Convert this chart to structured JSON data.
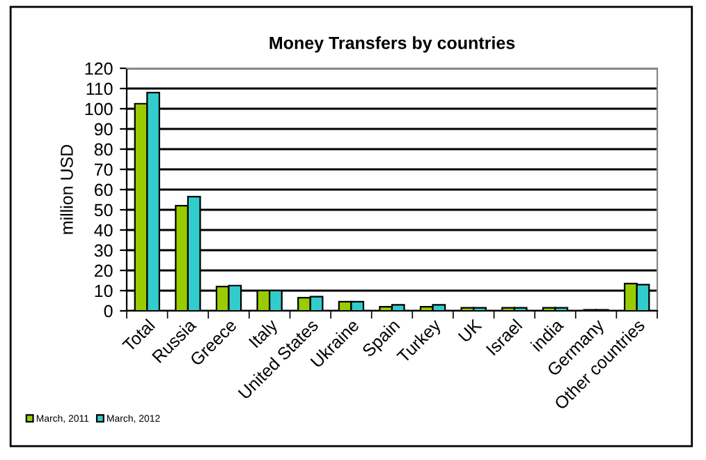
{
  "chart_data": {
    "type": "bar",
    "title": "Money Transfers by countries",
    "ylabel": "million USD",
    "categories": [
      "Total",
      "Russia",
      "Greece",
      "Italy",
      "United States",
      "Ukraine",
      "Spain",
      "Turkey",
      "UK",
      "Israel",
      "india",
      "Germany",
      "Other countries"
    ],
    "series": [
      {
        "name": "March, 2011",
        "color": "#99cc00",
        "values": [
          102.5,
          52,
          12,
          10,
          6.5,
          4.5,
          2,
          2,
          1.5,
          1.5,
          1.5,
          0.5,
          13.5
        ]
      },
      {
        "name": "March, 2012",
        "color": "#33cccc",
        "values": [
          108,
          56.5,
          12.5,
          10,
          7,
          4.5,
          3,
          3,
          1.5,
          1.5,
          1.5,
          0.5,
          13
        ]
      }
    ],
    "ylim": [
      0,
      120
    ],
    "yticks": [
      0,
      10,
      20,
      30,
      40,
      50,
      60,
      70,
      80,
      90,
      100,
      110,
      120
    ],
    "grid": "y",
    "legend": "bottom left"
  }
}
